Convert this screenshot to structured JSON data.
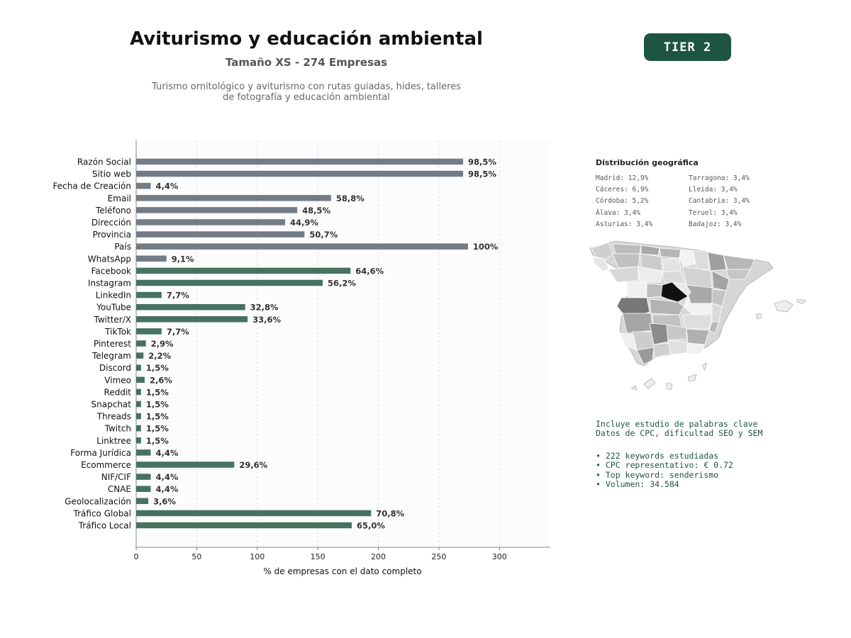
{
  "header": {
    "title": "Aviturismo y educación ambiental",
    "subtitle": "Tamaño XS - 274 Empresas",
    "description_line1": "Turismo ornitológico y aviturismo con rutas guiadas, hides, talleres",
    "description_line2": "de fotografía y educación ambiental",
    "tier_badge": "TIER 2"
  },
  "colors": {
    "bar_gray": "#737b84",
    "bar_green": "#46725f",
    "badge_bg": "#1e5542",
    "keyword_text": "#1e5542"
  },
  "chart_data": {
    "type": "bar",
    "orientation": "horizontal",
    "xlabel": "% de empresas con el dato completo",
    "xlim": [
      0,
      342
    ],
    "xticks": [
      0,
      50,
      100,
      150,
      200,
      250,
      300
    ],
    "grid": "vertical dashed",
    "categories": [
      "Razón Social",
      "Sitio web",
      "Fecha de Creación",
      "Email",
      "Teléfono",
      "Dirección",
      "Provincia",
      "País",
      "WhatsApp",
      "Facebook",
      "Instagram",
      "LinkedIn",
      "YouTube",
      "Twitter/X",
      "TikTok",
      "Pinterest",
      "Telegram",
      "Discord",
      "Vimeo",
      "Reddit",
      "Snapchat",
      "Threads",
      "Twitch",
      "Linktree",
      "Forma Jurídica",
      "Ecommerce",
      "NIF/CIF",
      "CNAE",
      "Geolocalización",
      "Tráfico Global",
      "Tráfico Local"
    ],
    "values": [
      270,
      270,
      12,
      161,
      133,
      123,
      139,
      274,
      25,
      177,
      154,
      21,
      90,
      92,
      21,
      8,
      6,
      4,
      7,
      4,
      4,
      4,
      4,
      4,
      12,
      81,
      12,
      12,
      10,
      194,
      178
    ],
    "labels": [
      "98,5%",
      "98,5%",
      "4,4%",
      "58,8%",
      "48,5%",
      "44,9%",
      "50,7%",
      "100%",
      "9,1%",
      "64,6%",
      "56,2%",
      "7,7%",
      "32,8%",
      "33,6%",
      "7,7%",
      "2,9%",
      "2,2%",
      "1,5%",
      "2,6%",
      "1,5%",
      "1,5%",
      "1,5%",
      "1,5%",
      "1,5%",
      "4,4%",
      "29,6%",
      "4,4%",
      "4,4%",
      "3,6%",
      "70,8%",
      "65,0%"
    ],
    "bar_groups": [
      "gray",
      "gray",
      "gray",
      "gray",
      "gray",
      "gray",
      "gray",
      "gray",
      "gray",
      "green",
      "green",
      "green",
      "green",
      "green",
      "green",
      "green",
      "green",
      "green",
      "green",
      "green",
      "green",
      "green",
      "green",
      "green",
      "green",
      "green",
      "green",
      "green",
      "green",
      "green",
      "green"
    ]
  },
  "geo": {
    "title": "Distribución geográfica",
    "items": [
      "Madrid: 12,9%",
      "Tarragona: 3,4%",
      "Cáceres: 6,9%",
      "Lleida: 3,4%",
      "Córdoba: 5,2%",
      "Cantabria: 3,4%",
      "Álava: 3,4%",
      "Teruel: 3,4%",
      "Asturias: 3,4%",
      "Badajoz: 3,4%"
    ]
  },
  "keywords": {
    "line1": "Incluye estudio de palabras clave",
    "line2": "Datos de CPC, dificultad SEO y SEM",
    "bullet1": "• 222 keywords estudiadas",
    "bullet2": "• CPC representativo: € 0.72",
    "bullet3": "• Top keyword: senderismo",
    "bullet4": "• Volumen: 34.584"
  }
}
